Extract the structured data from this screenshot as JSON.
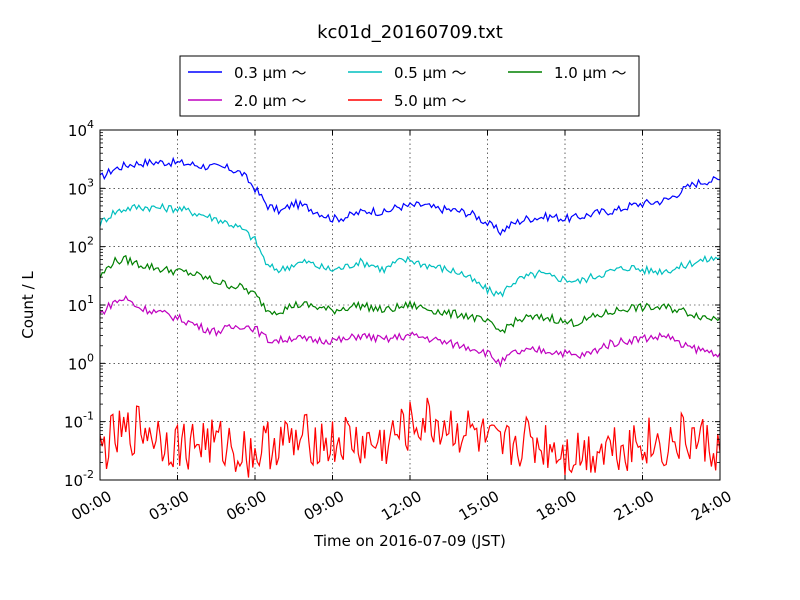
{
  "chart_data": {
    "type": "line",
    "title": "kc01d_20160709.txt",
    "xlabel": "Time on 2016-07-09 (JST)",
    "ylabel": "Count / L",
    "x_ticks": [
      "00:00",
      "03:00",
      "06:00",
      "09:00",
      "12:00",
      "15:00",
      "18:00",
      "21:00",
      "24:00"
    ],
    "x_tick_hours": [
      0,
      3,
      6,
      9,
      12,
      15,
      18,
      21,
      24
    ],
    "xlim": [
      0,
      24
    ],
    "y_scale": "log",
    "ylim": [
      0.01,
      10000
    ],
    "y_ticks": [
      {
        "value": 0.01,
        "base": "10",
        "exp": "-2"
      },
      {
        "value": 0.1,
        "base": "10",
        "exp": "-1"
      },
      {
        "value": 1,
        "base": "10",
        "exp": "0"
      },
      {
        "value": 10,
        "base": "10",
        "exp": "1"
      },
      {
        "value": 100,
        "base": "10",
        "exp": "2"
      },
      {
        "value": 1000,
        "base": "10",
        "exp": "3"
      },
      {
        "value": 10000,
        "base": "10",
        "exp": "4"
      }
    ],
    "grid": true,
    "legend_position": "top",
    "x_hours": [
      0,
      0.5,
      1,
      1.5,
      2,
      2.5,
      3,
      3.5,
      4,
      4.5,
      5,
      5.5,
      6,
      6.5,
      7,
      7.5,
      8,
      8.5,
      9,
      9.5,
      10,
      10.5,
      11,
      11.5,
      12,
      12.5,
      13,
      13.5,
      14,
      14.5,
      15,
      15.5,
      16,
      16.5,
      17,
      17.5,
      18,
      18.5,
      19,
      19.5,
      20,
      20.5,
      21,
      21.5,
      22,
      22.5,
      23,
      23.5,
      24
    ],
    "series": [
      {
        "name": "0.3 μm ～",
        "color": "#0000ff",
        "values": [
          1500,
          2100,
          2500,
          2700,
          2800,
          2800,
          2750,
          2600,
          2400,
          2300,
          2200,
          1800,
          1000,
          500,
          400,
          550,
          480,
          380,
          300,
          320,
          380,
          420,
          380,
          480,
          500,
          520,
          450,
          430,
          400,
          350,
          250,
          180,
          250,
          300,
          320,
          330,
          300,
          320,
          360,
          400,
          420,
          500,
          550,
          580,
          650,
          900,
          1200,
          1350,
          1400
        ]
      },
      {
        "name": "0.5 μm ～",
        "color": "#00bfbf",
        "values": [
          250,
          380,
          450,
          480,
          470,
          460,
          450,
          400,
          350,
          300,
          250,
          200,
          130,
          45,
          40,
          50,
          55,
          45,
          40,
          45,
          55,
          50,
          40,
          55,
          60,
          50,
          45,
          40,
          35,
          25,
          18,
          15,
          25,
          30,
          35,
          30,
          28,
          25,
          30,
          35,
          40,
          45,
          40,
          38,
          40,
          45,
          55,
          60,
          65
        ]
      },
      {
        "name": "1.0 μm ～",
        "color": "#008000",
        "values": [
          30,
          55,
          60,
          50,
          45,
          40,
          38,
          35,
          30,
          25,
          22,
          20,
          15,
          8,
          8,
          10,
          10,
          9,
          8,
          9,
          10,
          9,
          8,
          9,
          10,
          9,
          8,
          7,
          7,
          6,
          5,
          3.5,
          5,
          6,
          6,
          6,
          5,
          5,
          6,
          7,
          8,
          9,
          9,
          9,
          9,
          8,
          7,
          6,
          6
        ]
      },
      {
        "name": "2.0 μm ～",
        "color": "#bf00bf",
        "values": [
          7,
          11,
          13,
          9,
          8,
          7,
          6,
          5,
          4,
          3.5,
          4,
          4.5,
          4,
          2.5,
          2.5,
          2.8,
          2.5,
          2.5,
          2.5,
          2.5,
          3,
          2.8,
          2.5,
          2.8,
          3,
          2.8,
          2.5,
          2.2,
          2,
          1.8,
          1.5,
          1,
          1.5,
          1.6,
          1.7,
          1.6,
          1.5,
          1.3,
          1.5,
          2,
          2.3,
          2.5,
          2.7,
          2.8,
          3,
          2,
          1.8,
          1.6,
          1.5
        ]
      },
      {
        "name": "5.0 μm ～",
        "color": "#ff0000",
        "values": [
          0.03,
          0.05,
          0.06,
          0.08,
          0.07,
          0.05,
          0.04,
          0.04,
          0.05,
          0.04,
          0.04,
          0.03,
          0.03,
          0.04,
          0.05,
          0.04,
          0.05,
          0.05,
          0.04,
          0.05,
          0.04,
          0.04,
          0.04,
          0.06,
          0.08,
          0.1,
          0.09,
          0.08,
          0.07,
          0.06,
          0.04,
          0.03,
          0.04,
          0.05,
          0.04,
          0.04,
          0.03,
          0.03,
          0.03,
          0.04,
          0.04,
          0.04,
          0.05,
          0.04,
          0.04,
          0.05,
          0.05,
          0.04,
          0.03
        ]
      }
    ]
  }
}
